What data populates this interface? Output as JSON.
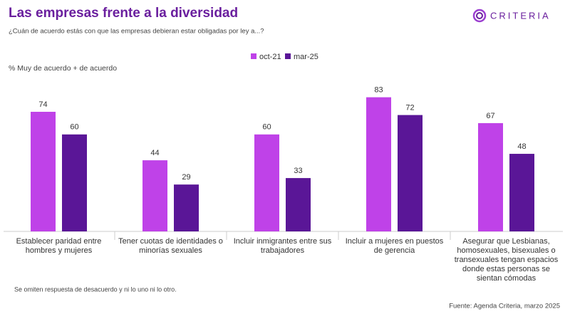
{
  "chart_data": {
    "type": "bar",
    "title": "Las empresas frente a la diversidad",
    "subtitle": "¿Cuán de acuerdo estás con que las empresas debieran estar obligadas por ley a...?",
    "brand": "CRITERIA",
    "y_label": "% Muy de acuerdo + de acuerdo",
    "categories": [
      "Establecer paridad entre hombres y mujeres",
      "Tener cuotas de identidades o minorías sexuales",
      "Incluir inmigrantes entre sus trabajadores",
      "Incluir a mujeres en puestos de gerencia",
      "Asegurar que Lesbianas, homosexuales, bisexuales o transexuales tengan espacios donde estas personas se sientan cómodas"
    ],
    "series": [
      {
        "name": "oct-21",
        "color": "#bf42e8",
        "values": [
          74,
          44,
          60,
          83,
          67
        ]
      },
      {
        "name": "mar-25",
        "color": "#5a1697",
        "values": [
          60,
          29,
          33,
          72,
          48
        ]
      }
    ],
    "legend": "top",
    "note": "Se omiten respuesta de desacuerdo y ni lo uno ni lo otro.",
    "source": "Fuente: Agenda Criteria, marzo 2025"
  }
}
